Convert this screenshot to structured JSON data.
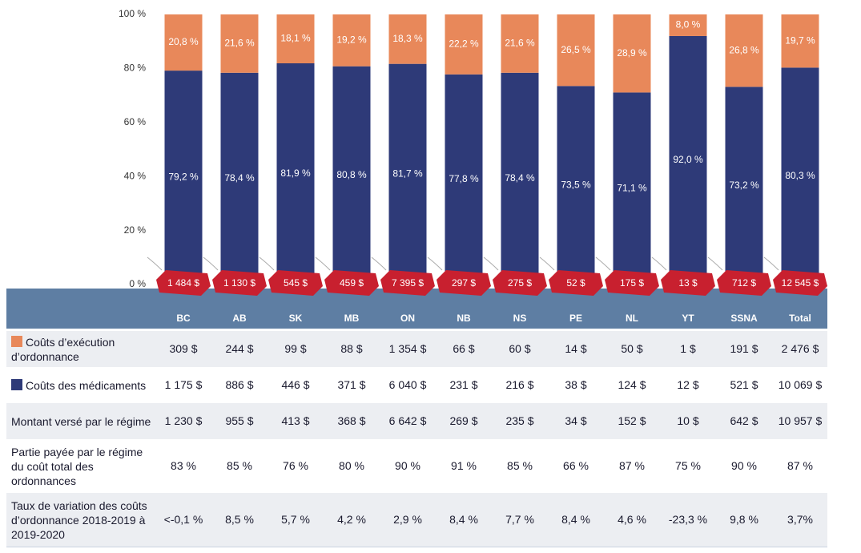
{
  "chart_data": {
    "type": "stacked_bar",
    "categories": [
      "BC",
      "AB",
      "SK",
      "MB",
      "ON",
      "NB",
      "NS",
      "PE",
      "NL",
      "YT",
      "SSNA",
      "Total"
    ],
    "series": [
      {
        "name": "Coûts des médicaments",
        "color": "#2e3a78",
        "values": [
          79.2,
          78.4,
          81.9,
          80.8,
          81.7,
          77.8,
          78.4,
          73.5,
          71.1,
          92.0,
          73.2,
          80.3
        ],
        "value_labels": [
          "79,2 %",
          "78,4 %",
          "81,9 %",
          "80,8 %",
          "81,7 %",
          "77,8 %",
          "78,4 %",
          "73,5 %",
          "71,1 %",
          "92,0 %",
          "73,2 %",
          "80,3 %"
        ]
      },
      {
        "name": "Coûts d’exécution d’ordonnance",
        "color": "#e8885a",
        "values": [
          20.8,
          21.6,
          18.1,
          19.2,
          18.3,
          22.2,
          21.6,
          26.5,
          28.9,
          8.0,
          26.8,
          19.7
        ],
        "value_labels": [
          "20,8 %",
          "21,6 %",
          "18,1 %",
          "19,2 %",
          "18,3 %",
          "22,2 %",
          "21,6 %",
          "26,5 %",
          "28,9 %",
          "8,0 %",
          "26,8 %",
          "19,7 %"
        ]
      }
    ],
    "totals": {
      "color": "#c8202f",
      "values": [
        1484,
        1130,
        545,
        459,
        7395,
        297,
        275,
        52,
        175,
        13,
        712,
        12545
      ],
      "value_labels": [
        "1 484 $",
        "1 130 $",
        "545 $",
        "459 $",
        "7 395 $",
        "297 $",
        "275 $",
        "52 $",
        "175 $",
        "13 $",
        "712 $",
        "12 545 $"
      ]
    },
    "ylim": [
      0,
      100
    ],
    "yticks": [
      {
        "value": 0,
        "label": "0 %"
      },
      {
        "value": 20,
        "label": "20 %"
      },
      {
        "value": 40,
        "label": "40 %"
      },
      {
        "value": 60,
        "label": "60 %"
      },
      {
        "value": 80,
        "label": "80 %"
      },
      {
        "value": 100,
        "label": "100 %"
      }
    ],
    "grid": false
  },
  "table": {
    "rows": [
      {
        "cells": [
          "309 $",
          "244 $",
          "99 $",
          "88 $",
          "1 354 $",
          "66 $",
          "60 $",
          "14 $",
          "50 $",
          "1 $",
          "191 $",
          "2 476 $"
        ]
      },
      {
        "cells": [
          "1 175 $",
          "886 $",
          "446 $",
          "371 $",
          "6 040 $",
          "231 $",
          "216 $",
          "38 $",
          "124 $",
          "12 $",
          "521 $",
          "10 069 $"
        ]
      },
      {
        "label": "Montant versé par le régime",
        "cells": [
          "1 230 $",
          "955 $",
          "413 $",
          "368 $",
          "6 642 $",
          "269 $",
          "235 $",
          "34 $",
          "152 $",
          "10 $",
          "642 $",
          "10 957 $"
        ]
      },
      {
        "label": "Partie payée par le régime du coût total des ordonnances",
        "cells": [
          "83 %",
          "85 %",
          "76 %",
          "80 %",
          "90 %",
          "91 %",
          "85 %",
          "66 %",
          "87 %",
          "75 %",
          "90 %",
          "87 %"
        ]
      },
      {
        "label": "Taux de variation des coûts d’ordonnance 2018-2019 à 2019-2020",
        "cells": [
          "<-0,1 %",
          "8,5 %",
          "5,7 %",
          "4,2 %",
          "2,9 %",
          "8,4 %",
          "7,7 %",
          "8,4 %",
          "4,6 %",
          "-23,3 %",
          "9,8 %",
          "3,7%"
        ]
      }
    ]
  }
}
